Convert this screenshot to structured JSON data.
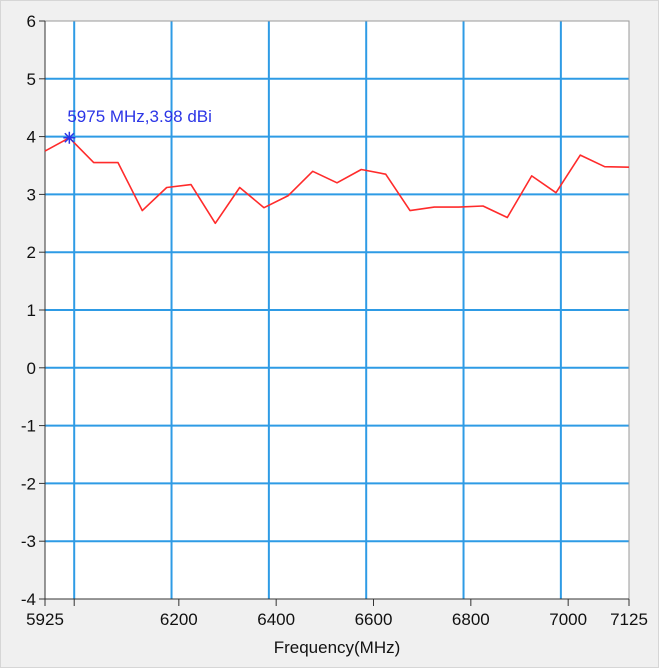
{
  "chart_data": {
    "type": "line",
    "title": "",
    "xlabel": "Frequency(MHz)",
    "ylabel": "",
    "xlim": [
      5925,
      7125
    ],
    "ylim": [
      -4,
      6
    ],
    "grid": true,
    "x_ticks": [
      {
        "value": 5925,
        "label": "5925"
      },
      {
        "value": 5985,
        "label": ""
      },
      {
        "value": 6200,
        "label": "6200"
      },
      {
        "value": 6400,
        "label": "6400"
      },
      {
        "value": 6600,
        "label": "6600"
      },
      {
        "value": 6800,
        "label": "6800"
      },
      {
        "value": 7000,
        "label": "7000"
      },
      {
        "value": 7125,
        "label": "7125"
      }
    ],
    "x_gridlines": [
      5985,
      6185,
      6385,
      6585,
      6785,
      6985
    ],
    "y_ticks": [
      {
        "value": 6,
        "label": "6"
      },
      {
        "value": 5,
        "label": "5"
      },
      {
        "value": 4,
        "label": "4"
      },
      {
        "value": 3,
        "label": "3"
      },
      {
        "value": 2,
        "label": "2"
      },
      {
        "value": 1,
        "label": "1"
      },
      {
        "value": 0,
        "label": "0"
      },
      {
        "value": -1,
        "label": "-1"
      },
      {
        "value": -2,
        "label": "-2"
      },
      {
        "value": -3,
        "label": "-3"
      },
      {
        "value": -4,
        "label": "-4"
      }
    ],
    "series": [
      {
        "color": "#ff2b2b",
        "x": [
          5925,
          5975,
          6025,
          6075,
          6125,
          6175,
          6225,
          6275,
          6325,
          6375,
          6425,
          6475,
          6525,
          6575,
          6625,
          6675,
          6725,
          6775,
          6825,
          6875,
          6925,
          6975,
          7025,
          7075,
          7125
        ],
        "y": [
          3.75,
          3.98,
          3.55,
          3.55,
          2.72,
          3.12,
          3.17,
          2.5,
          3.12,
          2.77,
          2.98,
          3.4,
          3.2,
          3.43,
          3.35,
          2.72,
          2.78,
          2.78,
          2.8,
          2.6,
          3.32,
          3.03,
          3.68,
          3.48,
          3.47
        ]
      }
    ],
    "marker": {
      "x": 5975,
      "y": 3.98,
      "label": "5975 MHz,3.98 dBi",
      "color": "#2b35e6"
    },
    "colors": {
      "plot_background": "#ffffff",
      "grid": "#2e9be5",
      "frame_background": "#f0f0f0",
      "axis": "#333333"
    }
  }
}
